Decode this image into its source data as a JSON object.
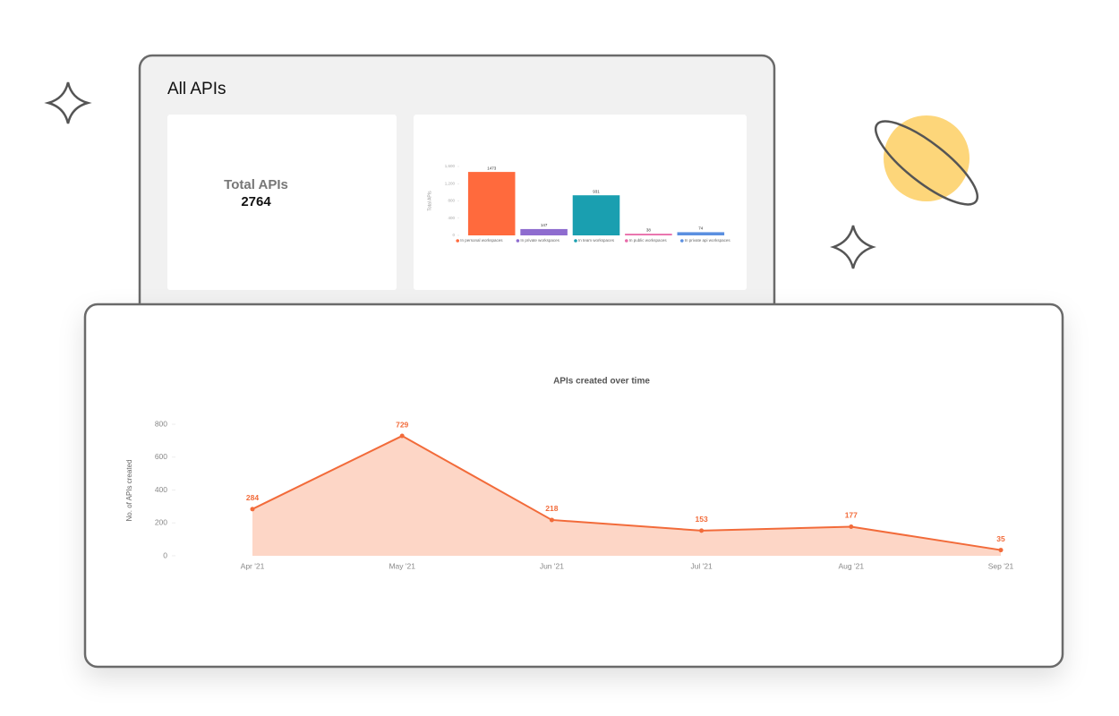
{
  "panel": {
    "title": "All APIs",
    "stat_label": "Total APIs",
    "stat_value": 2764
  },
  "chart_data": [
    {
      "type": "bar",
      "ylabel": "Total APIs",
      "categories": [
        "In personal workspaces",
        "In private workspaces",
        "In team workspaces",
        "In public workspaces",
        "In private api workspaces"
      ],
      "values": [
        1473,
        147,
        931,
        38,
        74
      ],
      "colors": [
        "#ff6a3d",
        "#8e6ccf",
        "#1a9fb0",
        "#e86aa8",
        "#5b8fe0"
      ],
      "ylim": [
        0,
        1600
      ],
      "yticks": [
        0,
        400,
        800,
        {
          "value": 1200,
          "label": "1,200"
        },
        {
          "value": 1600,
          "label": "1,600"
        }
      ]
    },
    {
      "type": "area",
      "title": "APIs created over time",
      "ylabel": "No. of APIs created",
      "categories": [
        "Apr '21",
        "May '21",
        "Jun '21",
        "Jul '21",
        "Aug '21",
        "Sep '21"
      ],
      "values": [
        284,
        729,
        218,
        153,
        177,
        35
      ],
      "color": "#f26b3a",
      "fill": "#fdd6c6",
      "ylim": [
        0,
        800
      ],
      "yticks": [
        0,
        200,
        400,
        600,
        800
      ]
    }
  ]
}
